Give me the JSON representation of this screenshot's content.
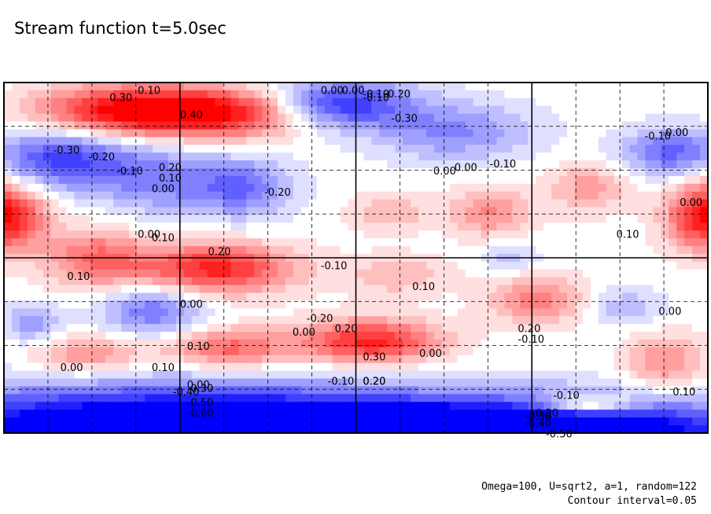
{
  "chart_data": {
    "type": "heatmap",
    "title": "Stream function t=5.0sec",
    "notes": [
      "Omega=100, U=sqrt2, a=1, random=122",
      "Contour interval=0.05"
    ],
    "contour_interval": 0.05,
    "colors": {
      "positive": "#ff0000",
      "negative": "#0000ff",
      "zero": "#ffffff"
    },
    "grid": true,
    "contour_labels": [
      {
        "text": "0.10"
      },
      {
        "text": "0.30"
      },
      {
        "text": "0.40"
      },
      {
        "text": "0.20"
      },
      {
        "text": "0.10"
      },
      {
        "text": "0.00"
      },
      {
        "text": "-0.30"
      },
      {
        "text": "-0.20"
      },
      {
        "text": "-0.10"
      },
      {
        "text": "-0.20"
      },
      {
        "text": "0.00"
      },
      {
        "text": "-0.10"
      },
      {
        "text": "0.00"
      },
      {
        "text": "-0.10"
      },
      {
        "text": "-0.20"
      },
      {
        "text": "-0.30"
      },
      {
        "text": "0.00"
      },
      {
        "text": "-0.10"
      },
      {
        "text": "0.00"
      },
      {
        "text": "-0.10"
      },
      {
        "text": "0.00"
      },
      {
        "text": "0.20"
      },
      {
        "text": "0.10"
      },
      {
        "text": "0.00"
      },
      {
        "text": "-0.10"
      },
      {
        "text": "-0.20"
      },
      {
        "text": "0.00"
      },
      {
        "text": "0.10"
      },
      {
        "text": "0.00"
      },
      {
        "text": "0.10"
      },
      {
        "text": "0.20"
      },
      {
        "text": "-0.10"
      },
      {
        "text": "0.00"
      },
      {
        "text": "0.10"
      },
      {
        "text": "0.10"
      },
      {
        "text": "0.00"
      },
      {
        "text": "0.00"
      },
      {
        "text": "0.20"
      },
      {
        "text": "0.30"
      },
      {
        "text": "0.20"
      },
      {
        "text": "0.00"
      },
      {
        "text": "-0.10"
      },
      {
        "text": "0.20"
      },
      {
        "text": "0.00"
      },
      {
        "text": "0.10"
      },
      {
        "text": "-0.40"
      },
      {
        "text": "-0.50"
      },
      {
        "text": "-0.30"
      },
      {
        "text": "-0.60"
      },
      {
        "text": "-0.10"
      },
      {
        "text": "-0.20"
      },
      {
        "text": "-0.30"
      },
      {
        "text": "-0.40"
      },
      {
        "text": "-0.50"
      },
      {
        "text": "0.10"
      }
    ],
    "vortices": [
      {
        "a": 0.42,
        "cx": 0.18,
        "cy": 0.08,
        "sx": 0.09,
        "sy": 0.05
      },
      {
        "a": 0.3,
        "cx": 0.32,
        "cy": 0.09,
        "sx": 0.08,
        "sy": 0.05
      },
      {
        "a": -0.32,
        "cx": 0.48,
        "cy": 0.06,
        "sx": 0.07,
        "sy": 0.05
      },
      {
        "a": -0.18,
        "cx": 0.64,
        "cy": 0.14,
        "sx": 0.08,
        "sy": 0.06
      },
      {
        "a": -0.3,
        "cx": 0.08,
        "cy": 0.22,
        "sx": 0.07,
        "sy": 0.06
      },
      {
        "a": -0.18,
        "cx": 0.22,
        "cy": 0.28,
        "sx": 0.06,
        "sy": 0.07
      },
      {
        "a": -0.22,
        "cx": 0.34,
        "cy": 0.3,
        "sx": 0.05,
        "sy": 0.06
      },
      {
        "a": 0.4,
        "cx": 0.0,
        "cy": 0.38,
        "sx": 0.04,
        "sy": 0.07
      },
      {
        "a": 0.4,
        "cx": 1.0,
        "cy": 0.38,
        "sx": 0.04,
        "sy": 0.07
      },
      {
        "a": 0.18,
        "cx": 0.69,
        "cy": 0.37,
        "sx": 0.04,
        "sy": 0.05
      },
      {
        "a": 0.12,
        "cx": 0.55,
        "cy": 0.37,
        "sx": 0.04,
        "sy": 0.04
      },
      {
        "a": 0.15,
        "cx": 0.83,
        "cy": 0.3,
        "sx": 0.04,
        "sy": 0.05
      },
      {
        "a": -0.25,
        "cx": 0.95,
        "cy": 0.2,
        "sx": 0.05,
        "sy": 0.05
      },
      {
        "a": 0.35,
        "cx": 0.3,
        "cy": 0.53,
        "sx": 0.08,
        "sy": 0.05
      },
      {
        "a": 0.22,
        "cx": 0.13,
        "cy": 0.5,
        "sx": 0.05,
        "sy": 0.06
      },
      {
        "a": -0.22,
        "cx": 0.21,
        "cy": 0.65,
        "sx": 0.05,
        "sy": 0.05
      },
      {
        "a": -0.15,
        "cx": 0.04,
        "cy": 0.69,
        "sx": 0.03,
        "sy": 0.04
      },
      {
        "a": 0.35,
        "cx": 0.52,
        "cy": 0.74,
        "sx": 0.07,
        "sy": 0.045
      },
      {
        "a": 0.25,
        "cx": 0.32,
        "cy": 0.76,
        "sx": 0.06,
        "sy": 0.04
      },
      {
        "a": 0.18,
        "cx": 0.12,
        "cy": 0.78,
        "sx": 0.06,
        "sy": 0.04
      },
      {
        "a": 0.2,
        "cx": 0.76,
        "cy": 0.62,
        "sx": 0.05,
        "sy": 0.05
      },
      {
        "a": 0.12,
        "cx": 0.56,
        "cy": 0.55,
        "sx": 0.05,
        "sy": 0.04
      },
      {
        "a": 0.18,
        "cx": 0.94,
        "cy": 0.8,
        "sx": 0.04,
        "sy": 0.06
      },
      {
        "a": -0.12,
        "cx": 0.88,
        "cy": 0.64,
        "sx": 0.04,
        "sy": 0.04
      },
      {
        "a": -0.1,
        "cx": 0.72,
        "cy": 0.5,
        "sx": 0.03,
        "sy": 0.03
      },
      {
        "a": -0.6,
        "cx": 0.25,
        "cy": 1.0,
        "sx": 0.3,
        "sy": 0.09
      },
      {
        "a": -0.35,
        "cx": 0.65,
        "cy": 1.0,
        "sx": 0.2,
        "sy": 0.06
      },
      {
        "a": 0.3,
        "cx": 0.83,
        "cy": 0.92,
        "sx": 0.05,
        "sy": 0.02
      },
      {
        "a": -0.3,
        "cx": 0.88,
        "cy": 1.0,
        "sx": 0.15,
        "sy": 0.07
      }
    ]
  }
}
